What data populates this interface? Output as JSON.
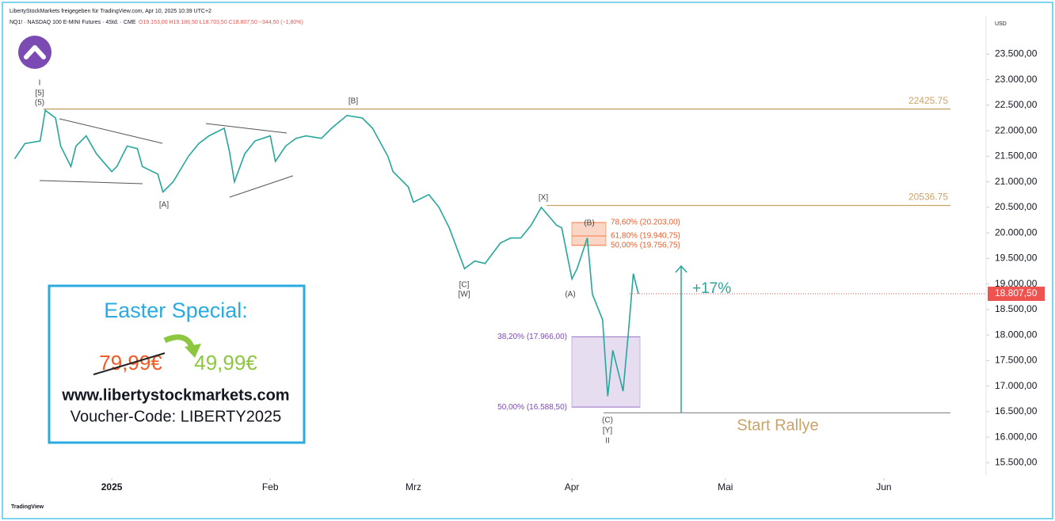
{
  "chart_data": {
    "type": "line",
    "header": "LibertyStockMarkets freigegeben für TradingView.com, Apr 10, 2025 10:39 UTC+2",
    "symbol": "NQ1! · NASDAQ 100 E-MINI Futures · 4Std. · CME",
    "ohlc": "O19.153,00 H19.186,50 L18.703,50 C18.807,50 −344,50 (−1,80%)",
    "currency": "USD",
    "brand": "TradingView",
    "x": [
      -18,
      -16,
      -13,
      -12,
      -10,
      -9,
      -7,
      -6,
      -4,
      -2,
      1,
      2,
      4,
      6,
      7,
      10,
      11,
      13,
      16,
      18,
      20,
      23,
      24,
      25,
      27,
      29,
      32,
      33,
      35,
      37,
      39,
      42,
      44,
      47,
      50,
      52,
      55,
      56,
      59,
      60,
      63,
      65,
      67,
      70,
      72,
      74,
      77,
      79,
      81,
      83,
      85,
      88,
      89,
      91,
      92,
      94,
      95,
      97,
      98,
      99,
      101,
      102,
      103,
      104
    ],
    "series": [
      {
        "name": "NQ1!",
        "color": "#26a69a",
        "values": [
          21450,
          21750,
          21800,
          22400,
          22250,
          21700,
          21300,
          21700,
          21900,
          21550,
          21200,
          21300,
          21700,
          21650,
          21300,
          21150,
          20800,
          21000,
          21500,
          21750,
          21900,
          22050,
          21600,
          21000,
          21550,
          21800,
          21900,
          21400,
          21700,
          21850,
          21900,
          21850,
          22050,
          22300,
          22250,
          22050,
          21500,
          21200,
          20900,
          20600,
          20750,
          20500,
          20100,
          19300,
          19450,
          19400,
          19800,
          19900,
          19900,
          20150,
          20500,
          20150,
          20100,
          19100,
          19300,
          19900,
          18800,
          18300,
          16800,
          17700,
          16900,
          18000,
          19200,
          18807.5
        ]
      }
    ],
    "xlim": [
      -19,
      172
    ],
    "xticks": [
      {
        "value": 1,
        "label": "2025"
      },
      {
        "value": 32,
        "label": "Feb"
      },
      {
        "value": 60,
        "label": "Mrz"
      },
      {
        "value": 91,
        "label": "Apr"
      },
      {
        "value": 121,
        "label": "Mai"
      },
      {
        "value": 152,
        "label": "Jun"
      }
    ],
    "ylim": [
      15250,
      24250
    ],
    "yticks": [
      {
        "value": 15500,
        "label": "15.500,00"
      },
      {
        "value": 16000,
        "label": "16.000,00"
      },
      {
        "value": 16500,
        "label": "16.500,00"
      },
      {
        "value": 17000,
        "label": "17.000,00"
      },
      {
        "value": 17500,
        "label": "17.500,00"
      },
      {
        "value": 18000,
        "label": "18.000,00"
      },
      {
        "value": 18500,
        "label": "18.500,00"
      },
      {
        "value": 19000,
        "label": "19.000,00"
      },
      {
        "value": 19500,
        "label": "19.500,00"
      },
      {
        "value": 20000,
        "label": "20.000,00"
      },
      {
        "value": 20500,
        "label": "20.500,00"
      },
      {
        "value": 21000,
        "label": "21.000,00"
      },
      {
        "value": 21500,
        "label": "21.500,00"
      },
      {
        "value": 22000,
        "label": "22.000,00"
      },
      {
        "value": 22500,
        "label": "22.500,00"
      },
      {
        "value": 23000,
        "label": "23.000,00"
      },
      {
        "value": 23500,
        "label": "23.500,00"
      }
    ],
    "last_price": {
      "value": 18807.5,
      "label": "18.807,50"
    },
    "levels": [
      {
        "value": 22425.75,
        "color": "#c9a46a"
      },
      {
        "value": 20536.75,
        "color": "#c9a46a"
      }
    ],
    "start_level": {
      "value": 16477,
      "label": "Start Rallye"
    },
    "zones": [
      {
        "from": 19756.75,
        "to": 20203,
        "color": "#f4a582",
        "labels": [
          "78,60% (20.203,00)",
          "61,80% (19.940,75)",
          "50,00% (19.756,75)"
        ],
        "label_values": [
          20203,
          19940.75,
          19756.75
        ]
      },
      {
        "from": 16588.5,
        "to": 17966,
        "color": "#c9b3df",
        "labels": [
          "38,20% (17.966,00)",
          "50,00% (16.588,50)"
        ],
        "label_values": [
          17966,
          16588.5
        ]
      }
    ],
    "arrow": {
      "from": 16477,
      "to": 19350,
      "label": "+17%"
    },
    "waves": [
      "I",
      "[5]",
      "(5)",
      "[A]",
      "[B]",
      "[C]",
      "[W]",
      "[X]",
      "(B)",
      "(A)",
      "(C)",
      "[Y]",
      "II"
    ],
    "promo": {
      "title": "Easter Special:",
      "old_price": "79,99€",
      "new_price": "49,99€",
      "url": "www.libertystockmarkets.com",
      "voucher": "Voucher-Code: LIBERTY2025"
    }
  }
}
